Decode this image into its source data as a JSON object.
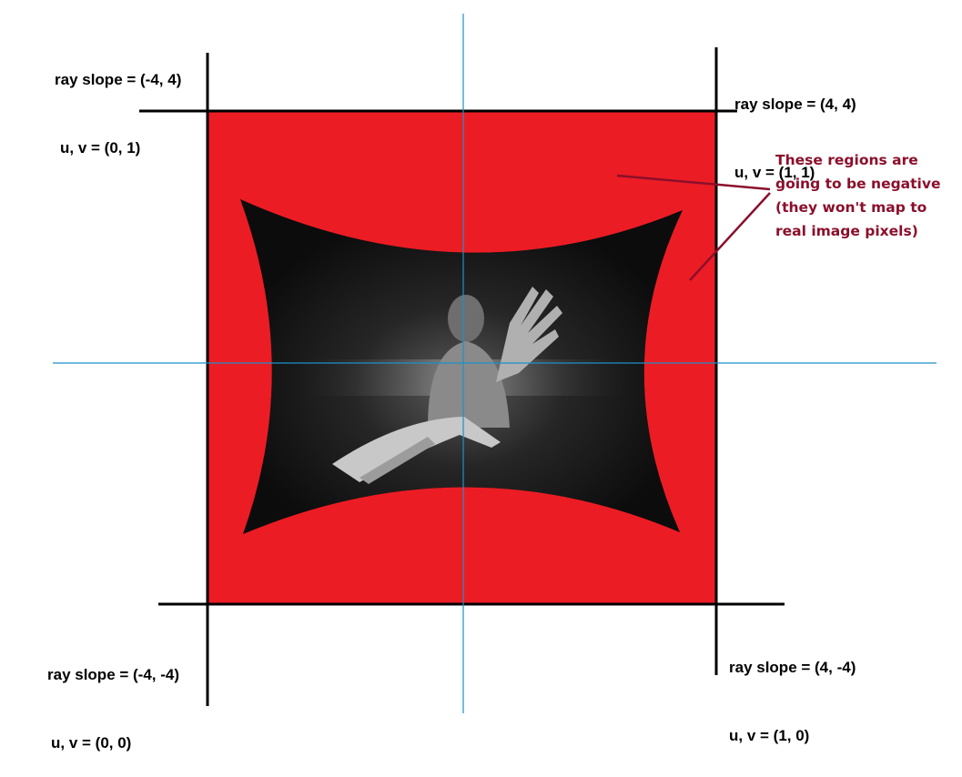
{
  "corners": {
    "top_left": {
      "slope": "ray slope = (-4, 4)",
      "uv": "u, v = (0, 1)"
    },
    "top_right": {
      "slope": "ray slope = (4, 4)",
      "uv": "u, v = (1, 1)"
    },
    "bottom_left": {
      "slope": "ray slope = (-4, -4)",
      "uv": "u, v = (0, 0)"
    },
    "bottom_right": {
      "slope": "ray slope = (4, -4)",
      "uv": "u, v = (1, 0)"
    }
  },
  "annotation": {
    "lines": [
      "These regions are",
      "going to be negative",
      "(they won't map to",
      "real image pixels)"
    ],
    "color": "#8b0f2b"
  },
  "colors": {
    "invalid_region": "#ec1c24",
    "image_region": "#101010",
    "axis_line": "#1e90c8",
    "frame_line": "#000000"
  }
}
